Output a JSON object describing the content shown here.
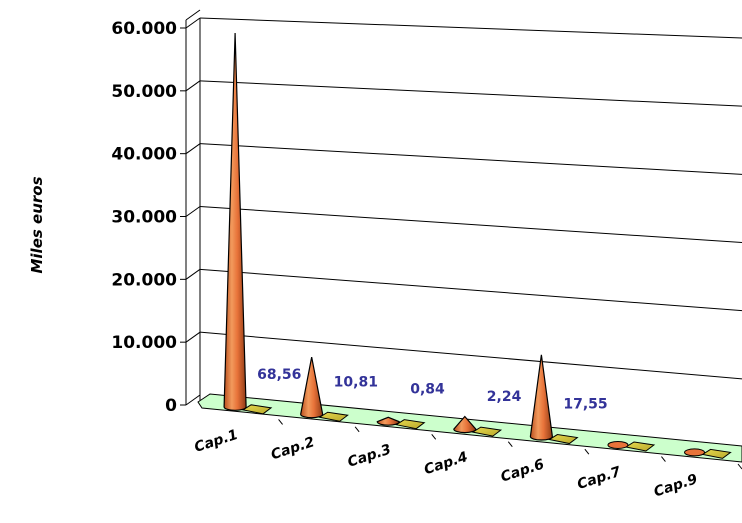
{
  "chart_data": {
    "type": "bar",
    "subtype": "3d-cone",
    "ylabel": "Miles euros",
    "ylim": [
      0,
      60000
    ],
    "yticks": [
      "0",
      "10.000",
      "20.000",
      "30.000",
      "40.000",
      "50.000",
      "60.000"
    ],
    "yticks_values": [
      0,
      10000,
      20000,
      30000,
      40000,
      50000,
      60000
    ],
    "categories": [
      "Cap.1",
      "Cap.2",
      "Cap.3",
      "Cap.4",
      "Cap.6",
      "Cap.7",
      "Cap.9"
    ],
    "series": [
      {
        "values": [
          59500,
          9100,
          700,
          2000,
          13000,
          0,
          0
        ],
        "color": "#e8733a"
      },
      {
        "values": [
          0,
          0,
          0,
          0,
          0,
          0,
          0
        ],
        "color": "#d4c43a"
      }
    ],
    "data_labels": [
      "68,56",
      "10,81",
      "0,84",
      "2,24",
      "17,55",
      "",
      ""
    ],
    "grid": true,
    "floor_color": "#ccffcc",
    "label_color": "#333399"
  }
}
